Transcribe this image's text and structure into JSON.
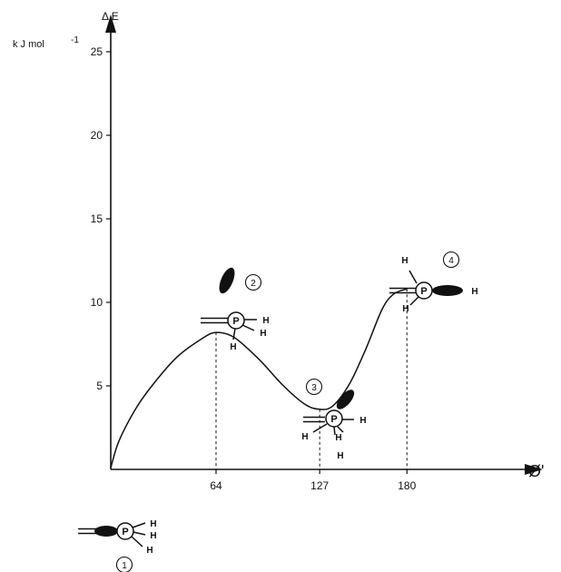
{
  "chart_data": {
    "type": "line",
    "title": "",
    "ylabel_symbol": "Δ E",
    "ylabel_units": "k J mol",
    "ylabel_exponent": "-1",
    "xlabel": "Ø'",
    "yticks": [
      5,
      10,
      15,
      20,
      25
    ],
    "xticks": [
      64,
      127,
      180
    ],
    "ylim": [
      0,
      28
    ],
    "xlim": [
      0,
      230
    ],
    "grid": false,
    "series": [
      {
        "x": [
          0,
          5,
          15,
          25,
          40,
          55,
          64,
          75,
          90,
          105,
          118,
          127,
          135,
          145,
          155,
          165,
          172,
          180
        ],
        "y": [
          0.1,
          1.7,
          3.6,
          5.0,
          6.7,
          7.8,
          8.2,
          7.9,
          6.6,
          5.0,
          3.9,
          3.6,
          3.8,
          5.1,
          7.2,
          9.6,
          10.5,
          10.8
        ]
      }
    ],
    "annotations": [
      {
        "label": "1",
        "x": 0,
        "y": 0
      },
      {
        "label": "2",
        "x": 64,
        "y": 8.2
      },
      {
        "label": "3",
        "x": 127,
        "y": 3.6
      },
      {
        "label": "4",
        "x": 180,
        "y": 10.8
      }
    ],
    "vertical_guides_at": [
      64,
      127,
      180
    ]
  },
  "conformers": {
    "atom_label": "P",
    "substituent_label": "H"
  }
}
